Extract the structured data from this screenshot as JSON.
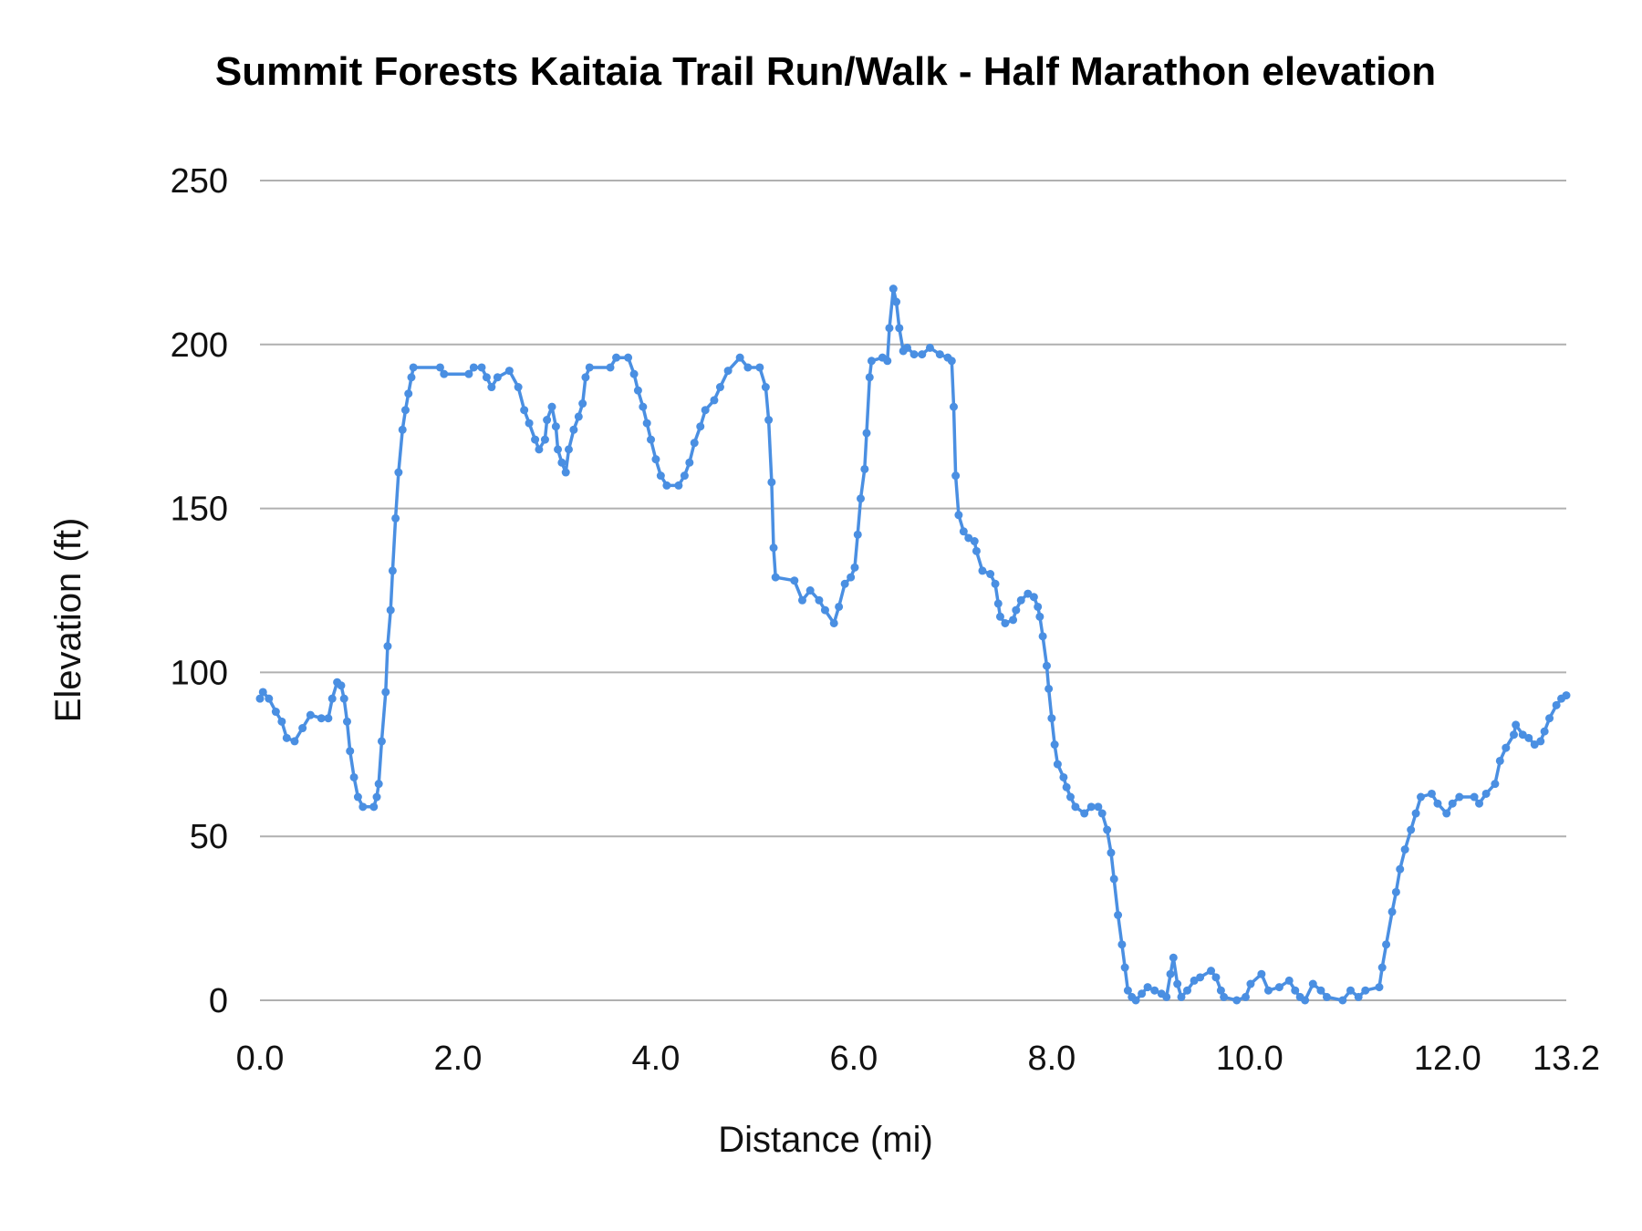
{
  "chart_data": {
    "type": "line",
    "title": "Summit Forests Kaitaia Trail Run/Walk - Half Marathon elevation",
    "xlabel": "Distance (mi)",
    "ylabel": "Elevation (ft)",
    "xlim": [
      0,
      13.2
    ],
    "ylim": [
      0,
      250
    ],
    "x_ticks": [
      "0.0",
      "2.0",
      "4.0",
      "6.0",
      "8.0",
      "10.0",
      "12.0",
      "13.2"
    ],
    "x_tick_values": [
      0,
      2,
      4,
      6,
      8,
      10,
      12,
      13.2
    ],
    "y_ticks": [
      "0",
      "50",
      "100",
      "150",
      "200",
      "250"
    ],
    "y_tick_values": [
      0,
      50,
      100,
      150,
      200,
      250
    ],
    "grid": true,
    "legend": "none",
    "color": "#4a8fe2",
    "series": [
      {
        "x": [
          0,
          0.03,
          0.09,
          0.16,
          0.22,
          0.27,
          0.35,
          0.43,
          0.51,
          0.62,
          0.69,
          0.73,
          0.78,
          0.82,
          0.85,
          0.88,
          0.91,
          0.95,
          0.99,
          1.04,
          1.15,
          1.18,
          1.2,
          1.23,
          1.27,
          1.29,
          1.32,
          1.34,
          1.37,
          1.4,
          1.44,
          1.47,
          1.5,
          1.53,
          1.55,
          1.82,
          1.86,
          2.11,
          2.16,
          2.24,
          2.29,
          2.34,
          2.4,
          2.52,
          2.61,
          2.67,
          2.72,
          2.78,
          2.82,
          2.88,
          2.9,
          2.95,
          2.99,
          3.01,
          3.05,
          3.09,
          3.12,
          3.17,
          3.22,
          3.26,
          3.29,
          3.33,
          3.54,
          3.6,
          3.72,
          3.78,
          3.82,
          3.87,
          3.91,
          3.95,
          4.0,
          4.05,
          4.11,
          4.23,
          4.29,
          4.34,
          4.39,
          4.45,
          4.5,
          4.59,
          4.65,
          4.73,
          4.85,
          4.93,
          5.05,
          5.11,
          5.14,
          5.17,
          5.19,
          5.21,
          5.4,
          5.48,
          5.56,
          5.65,
          5.71,
          5.8,
          5.85,
          5.91,
          5.97,
          6.01,
          6.04,
          6.07,
          6.11,
          6.13,
          6.16,
          6.18,
          6.29,
          6.34,
          6.36,
          6.4,
          6.43,
          6.46,
          6.5,
          6.54,
          6.61,
          6.69,
          6.77,
          6.87,
          6.95,
          6.99,
          7.01,
          7.03,
          7.06,
          7.11,
          7.16,
          7.22,
          7.24,
          7.3,
          7.38,
          7.43,
          7.46,
          7.48,
          7.53,
          7.61,
          7.64,
          7.69,
          7.76,
          7.82,
          7.86,
          7.88,
          7.91,
          7.95,
          7.97,
          8.0,
          8.03,
          8.06,
          8.12,
          8.15,
          8.19,
          8.24,
          8.33,
          8.4,
          8.47,
          8.51,
          8.56,
          8.6,
          8.63,
          8.67,
          8.71,
          8.74,
          8.77,
          8.81,
          8.85,
          8.91,
          8.97,
          9.04,
          9.11,
          9.16,
          9.2,
          9.23,
          9.27,
          9.31,
          9.37,
          9.44,
          9.5,
          9.61,
          9.66,
          9.71,
          9.74,
          9.87,
          9.96,
          10.01,
          10.12,
          10.19,
          10.3,
          10.4,
          10.46,
          10.51,
          10.56,
          10.64,
          10.72,
          10.78,
          10.94,
          11.02,
          11.1,
          11.17,
          11.31,
          11.34,
          11.38,
          11.44,
          11.48,
          11.52,
          11.57,
          11.63,
          11.68,
          11.73,
          11.84,
          11.9,
          11.99,
          12.05,
          12.12,
          12.27,
          12.32,
          12.39,
          12.48,
          12.53,
          12.59,
          12.67,
          12.69,
          12.76,
          12.82,
          12.88,
          12.94,
          12.98,
          13.03,
          13.1,
          13.15,
          13.2
        ],
        "y": [
          92,
          94,
          92,
          88,
          85,
          80,
          79,
          83,
          87,
          86,
          86,
          92,
          97,
          96,
          92,
          85,
          76,
          68,
          62,
          59,
          59,
          62,
          66,
          79,
          94,
          108,
          119,
          131,
          147,
          161,
          174,
          180,
          185,
          190,
          193,
          193,
          191,
          191,
          193,
          193,
          190,
          187,
          190,
          192,
          187,
          180,
          176,
          171,
          168,
          171,
          177,
          181,
          175,
          168,
          164,
          161,
          168,
          174,
          178,
          182,
          190,
          193,
          193,
          196,
          196,
          191,
          186,
          181,
          176,
          171,
          165,
          160,
          157,
          157,
          160,
          164,
          170,
          175,
          180,
          183,
          187,
          192,
          196,
          193,
          193,
          187,
          177,
          158,
          138,
          129,
          128,
          122,
          125,
          122,
          119,
          115,
          120,
          127,
          129,
          132,
          142,
          153,
          162,
          173,
          190,
          195,
          196,
          195,
          205,
          217,
          213,
          205,
          198,
          199,
          197,
          197,
          199,
          197,
          196,
          195,
          181,
          160,
          148,
          143,
          141,
          140,
          137,
          131,
          130,
          127,
          121,
          117,
          115,
          116,
          119,
          122,
          124,
          123,
          120,
          117,
          111,
          102,
          95,
          86,
          78,
          72,
          68,
          65,
          62,
          59,
          57,
          59,
          59,
          57,
          52,
          45,
          37,
          26,
          17,
          10,
          3,
          1,
          0,
          2,
          4,
          3,
          2,
          1,
          8,
          13,
          5,
          1,
          3,
          6,
          7,
          9,
          7,
          3,
          1,
          0,
          1,
          5,
          8,
          3,
          4,
          6,
          3,
          1,
          0,
          5,
          3,
          1,
          0,
          3,
          1,
          3,
          4,
          10,
          17,
          27,
          33,
          40,
          46,
          52,
          57,
          62,
          63,
          60,
          57,
          60,
          62,
          62,
          60,
          63,
          66,
          73,
          77,
          81,
          84,
          81,
          80,
          78,
          79,
          82,
          86,
          90,
          92,
          93
        ]
      }
    ]
  }
}
